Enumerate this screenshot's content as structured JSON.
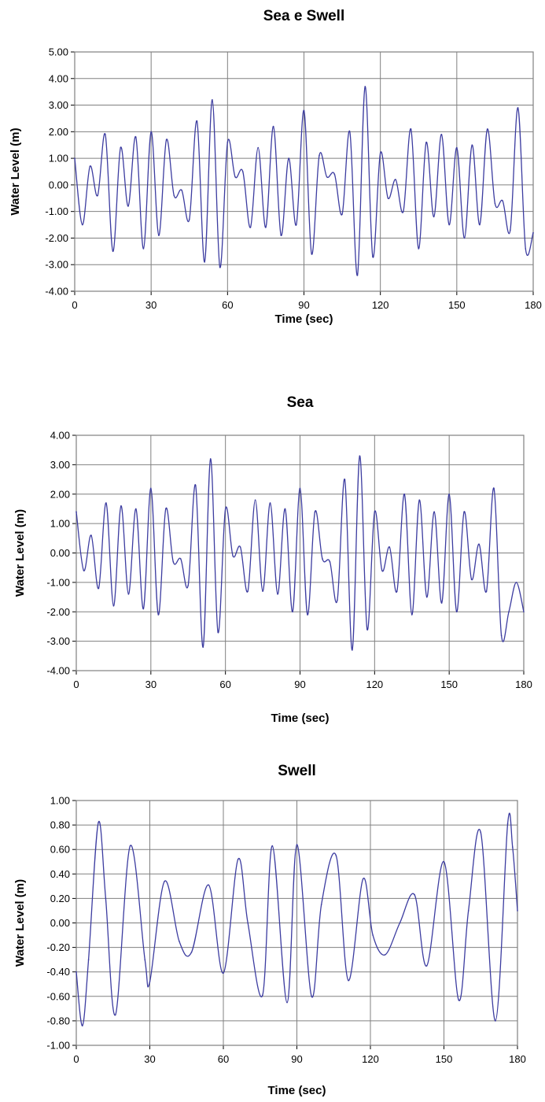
{
  "colors": {
    "series": "#3c3ca0",
    "grid": "#808080",
    "frame": "#808080"
  },
  "chart_data": [
    {
      "type": "line",
      "title": "Sea e Swell",
      "xlabel": "Time (sec)",
      "ylabel": "Water Level (m)",
      "xlim": [
        0,
        180
      ],
      "ylim": [
        -4,
        5
      ],
      "grid": true,
      "xticks": [
        "0",
        "30",
        "60",
        "90",
        "120",
        "150",
        "180"
      ],
      "yticks": [
        "-4.00",
        "-3.00",
        "-2.00",
        "-1.00",
        "0.00",
        "1.00",
        "2.00",
        "3.00",
        "4.00",
        "5.00"
      ],
      "series": [
        {
          "x": [
            0,
            3,
            6,
            9,
            12,
            15,
            18,
            21,
            24,
            27,
            30,
            33,
            36,
            39,
            42,
            45,
            48,
            51,
            54,
            57,
            60,
            63,
            66,
            69,
            72,
            75,
            78,
            81,
            84,
            87,
            90,
            93,
            96,
            99,
            102,
            105,
            108,
            111,
            114,
            117,
            120,
            123,
            126,
            129,
            132,
            135,
            138,
            141,
            144,
            147,
            150,
            153,
            156,
            159,
            162,
            165,
            168,
            171,
            174,
            177,
            180
          ],
          "y": [
            1.0,
            -1.5,
            0.7,
            -0.4,
            1.9,
            -2.5,
            1.4,
            -0.8,
            1.8,
            -2.4,
            2.0,
            -1.9,
            1.7,
            -0.4,
            -0.2,
            -1.3,
            2.4,
            -2.9,
            3.2,
            -3.1,
            1.6,
            0.3,
            0.5,
            -1.6,
            1.4,
            -1.6,
            2.2,
            -1.9,
            1.0,
            -1.5,
            2.8,
            -2.6,
            1.1,
            0.3,
            0.4,
            -1.1,
            2.0,
            -3.4,
            3.7,
            -2.7,
            1.2,
            -0.5,
            0.2,
            -1.0,
            2.1,
            -2.4,
            1.6,
            -1.2,
            1.9,
            -1.5,
            1.4,
            -2.0,
            1.5,
            -1.5,
            2.1,
            -0.7,
            -0.6,
            -1.7,
            2.9,
            -2.4,
            -1.8
          ]
        }
      ]
    },
    {
      "type": "line",
      "title": "Sea",
      "xlabel": "Time (sec)",
      "ylabel": "Water Level (m)",
      "xlim": [
        0,
        180
      ],
      "ylim": [
        -4,
        4
      ],
      "grid": true,
      "xticks": [
        "0",
        "30",
        "60",
        "90",
        "120",
        "150",
        "180"
      ],
      "yticks": [
        "-4.00",
        "-3.00",
        "-2.00",
        "-1.00",
        "0.00",
        "1.00",
        "2.00",
        "3.00",
        "4.00"
      ],
      "series": [
        {
          "x": [
            0,
            3,
            6,
            9,
            12,
            15,
            18,
            21,
            24,
            27,
            30,
            33,
            36,
            39,
            42,
            45,
            48,
            51,
            54,
            57,
            60,
            63,
            66,
            69,
            72,
            75,
            78,
            81,
            84,
            87,
            90,
            93,
            96,
            99,
            102,
            105,
            108,
            111,
            114,
            117,
            120,
            123,
            126,
            129,
            132,
            135,
            138,
            141,
            144,
            147,
            150,
            153,
            156,
            159,
            162,
            165,
            168,
            171,
            174,
            177,
            180
          ],
          "y": [
            1.4,
            -0.6,
            0.6,
            -1.2,
            1.7,
            -1.8,
            1.6,
            -1.4,
            1.5,
            -1.9,
            2.2,
            -2.1,
            1.5,
            -0.3,
            -0.2,
            -1.1,
            2.3,
            -3.2,
            3.2,
            -2.7,
            1.5,
            -0.1,
            0.2,
            -1.3,
            1.8,
            -1.3,
            1.7,
            -1.4,
            1.5,
            -2.0,
            2.2,
            -2.1,
            1.4,
            -0.2,
            -0.3,
            -1.6,
            2.5,
            -3.3,
            3.3,
            -2.6,
            1.4,
            -0.6,
            0.2,
            -1.3,
            2.0,
            -2.1,
            1.8,
            -1.5,
            1.4,
            -1.7,
            2.0,
            -2.0,
            1.4,
            -0.9,
            0.3,
            -1.3,
            2.2,
            -2.8,
            -2.0,
            -1.0,
            -2.0
          ]
        }
      ]
    },
    {
      "type": "line",
      "title": "Swell",
      "xlabel": "Time (sec)",
      "ylabel": "Water Level (m)",
      "xlim": [
        0,
        180
      ],
      "ylim": [
        -1,
        1
      ],
      "grid": true,
      "xticks": [
        "0",
        "30",
        "60",
        "90",
        "120",
        "150",
        "180"
      ],
      "yticks": [
        "-1.00",
        "-0.80",
        "-0.60",
        "-0.40",
        "-0.20",
        "0.00",
        "0.20",
        "0.40",
        "0.60",
        "0.80",
        "1.00"
      ],
      "series": [
        {
          "x": [
            0,
            2.5,
            5,
            9,
            12,
            16,
            22,
            28,
            30,
            36,
            42,
            47,
            54,
            60,
            66,
            70,
            76,
            80,
            86,
            90,
            96,
            100,
            106,
            111,
            117,
            121,
            126,
            132,
            138,
            143,
            150,
            156,
            160,
            165,
            171,
            176,
            178,
            180
          ],
          "y": [
            -0.4,
            -0.84,
            -0.3,
            0.82,
            0.2,
            -0.75,
            0.63,
            -0.3,
            -0.48,
            0.34,
            -0.15,
            -0.24,
            0.31,
            -0.41,
            0.52,
            0.0,
            -0.59,
            0.63,
            -0.65,
            0.64,
            -0.6,
            0.15,
            0.55,
            -0.47,
            0.36,
            -0.1,
            -0.26,
            0.0,
            0.23,
            -0.35,
            0.5,
            -0.63,
            0.1,
            0.74,
            -0.8,
            0.81,
            0.62,
            0.1
          ]
        }
      ]
    }
  ]
}
